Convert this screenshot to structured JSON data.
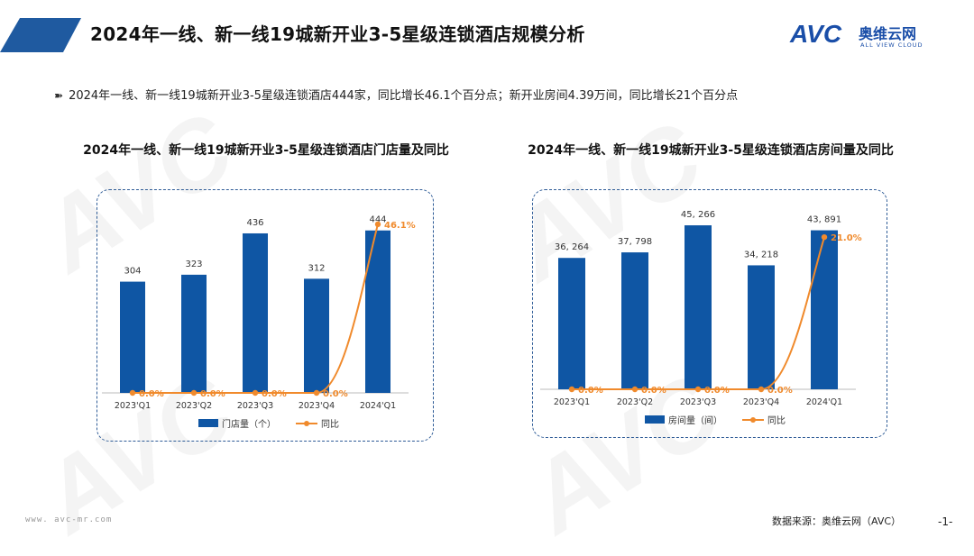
{
  "page": {
    "title": "2024年一线、新一线19城新开业3-5星级连锁酒店规模分析",
    "bullet": "2024年一线、新一线19城新开业3-5星级连锁酒店444家，同比增长46.1个百分点；新开业房间4.39万间，同比增长21个百分点",
    "source": "数据来源：奥维云网（AVC）",
    "page_number": "-1-",
    "website": "www. avc-mr.com"
  },
  "logo": {
    "mark": "AVC",
    "cn": "奥维云网",
    "en": "ALL VIEW CLOUD"
  },
  "watermark": {
    "mark": "AVC",
    "cn": "奥维云网",
    "en": "ALL VIEW CLOUD"
  },
  "colors": {
    "bar": "#0f56a4",
    "line": "#f08a2c",
    "frame": "#2f5c97",
    "banner": "#1f5aa0"
  },
  "chart_data": [
    {
      "type": "bar",
      "title": "2024年一线、新一线19城新开业3-5星级连锁酒店门店量及同比",
      "categories": [
        "2023'Q1",
        "2023'Q2",
        "2023'Q3",
        "2023'Q4",
        "2024'Q1"
      ],
      "series": [
        {
          "name": "门店量（个）",
          "type": "bar",
          "values": [
            304,
            323,
            436,
            312,
            444
          ],
          "labels": [
            "304",
            "323",
            "436",
            "312",
            "444"
          ]
        },
        {
          "name": "同比",
          "type": "line",
          "values": [
            0,
            0,
            0,
            0,
            46.1
          ],
          "labels": [
            "0.0%",
            "0.0%",
            "0.0%",
            "0.0%",
            "46.1%"
          ]
        }
      ],
      "legend": "bottom"
    },
    {
      "type": "bar",
      "title": "2024年一线、新一线19城新开业3-5星级连锁酒店房间量及同比",
      "categories": [
        "2023'Q1",
        "2023'Q2",
        "2023'Q3",
        "2023'Q4",
        "2024'Q1"
      ],
      "series": [
        {
          "name": "房间量（间）",
          "type": "bar",
          "values": [
            36264,
            37798,
            45266,
            34218,
            43891
          ],
          "labels": [
            "36, 264",
            "37, 798",
            "45, 266",
            "34, 218",
            "43, 891"
          ]
        },
        {
          "name": "同比",
          "type": "line",
          "values": [
            0,
            0,
            0,
            0,
            21.0
          ],
          "labels": [
            "0.0%",
            "0.0%",
            "0.0%",
            "0.0%",
            "21.0%"
          ]
        }
      ],
      "legend": "bottom"
    }
  ]
}
